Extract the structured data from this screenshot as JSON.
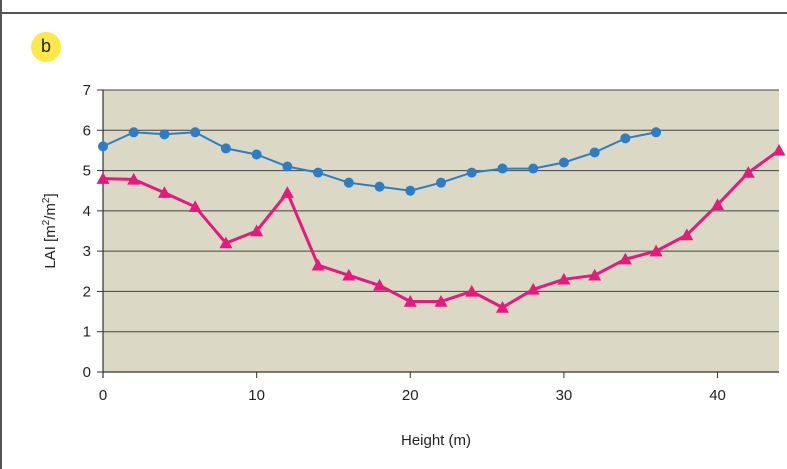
{
  "panel_label": "b",
  "colors": {
    "plot_bg": "#dbd8c6",
    "grid": "#444444",
    "blue_series": "#2e7dc4",
    "pink_series": "#e6197f",
    "badge": "#fde84a"
  },
  "chart_data": {
    "type": "line",
    "title": "",
    "xlabel": "Height (m)",
    "ylabel_parts": {
      "base": "LAI [m",
      "sup1": "2",
      "mid": "/m",
      "sup2": "2",
      "end": "]"
    },
    "xlim": [
      0,
      44
    ],
    "ylim": [
      0,
      7
    ],
    "x_ticks": [
      0,
      10,
      20,
      30,
      40
    ],
    "y_ticks": [
      0,
      1,
      2,
      3,
      4,
      5,
      6,
      7
    ],
    "grid": "horizontal",
    "legend": "none",
    "series": [
      {
        "marker": "circle",
        "color": "#2e7dc4",
        "x": [
          0,
          2,
          4,
          6,
          8,
          10,
          12,
          14,
          16,
          18,
          20,
          22,
          24,
          26,
          28,
          30,
          32,
          34,
          36
        ],
        "y": [
          5.6,
          5.95,
          5.9,
          5.95,
          5.55,
          5.4,
          5.1,
          4.95,
          4.7,
          4.6,
          4.5,
          4.7,
          4.95,
          5.05,
          5.05,
          5.2,
          5.45,
          5.8,
          5.95
        ]
      },
      {
        "marker": "triangle",
        "color": "#e6197f",
        "x": [
          0,
          2,
          4,
          6,
          8,
          10,
          12,
          14,
          16,
          18,
          20,
          22,
          24,
          26,
          28,
          30,
          32,
          34,
          36,
          38,
          40,
          42,
          44
        ],
        "y": [
          4.8,
          4.78,
          4.45,
          4.1,
          3.2,
          3.5,
          4.45,
          2.65,
          2.4,
          2.15,
          1.75,
          1.75,
          2.0,
          1.6,
          2.05,
          2.3,
          2.4,
          2.8,
          3.0,
          3.4,
          4.15,
          4.95,
          5.5
        ]
      }
    ]
  }
}
